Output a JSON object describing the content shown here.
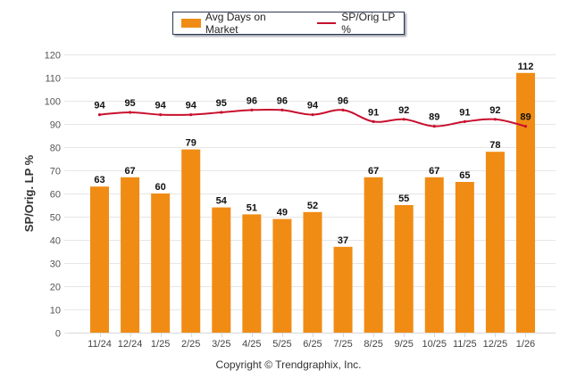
{
  "chart_data": {
    "type": "bar",
    "title": "",
    "xlabel": "",
    "ylabel": "SP/Orig. LP %",
    "ylim": [
      0,
      120
    ],
    "yticks": [
      0,
      10,
      20,
      30,
      40,
      50,
      60,
      70,
      80,
      90,
      100,
      110,
      120
    ],
    "grid": true,
    "legend_position": "top-center",
    "categories": [
      "11/24",
      "12/24",
      "1/25",
      "2/25",
      "3/25",
      "4/25",
      "5/25",
      "6/25",
      "7/25",
      "8/25",
      "9/25",
      "10/25",
      "11/25",
      "12/25",
      "1/26"
    ],
    "series": [
      {
        "name": "Avg Days on Market",
        "type": "bar",
        "color": "#f08c14",
        "values": [
          63,
          67,
          60,
          79,
          54,
          51,
          49,
          52,
          37,
          67,
          55,
          67,
          65,
          78,
          112
        ]
      },
      {
        "name": "SP/Orig LP %",
        "type": "line",
        "color": "#c8102e",
        "values": [
          94,
          95,
          94,
          94,
          95,
          96,
          96,
          94,
          96,
          91,
          92,
          89,
          91,
          92,
          89
        ]
      }
    ]
  },
  "copyright": "Copyright © Trendgraphix, Inc."
}
